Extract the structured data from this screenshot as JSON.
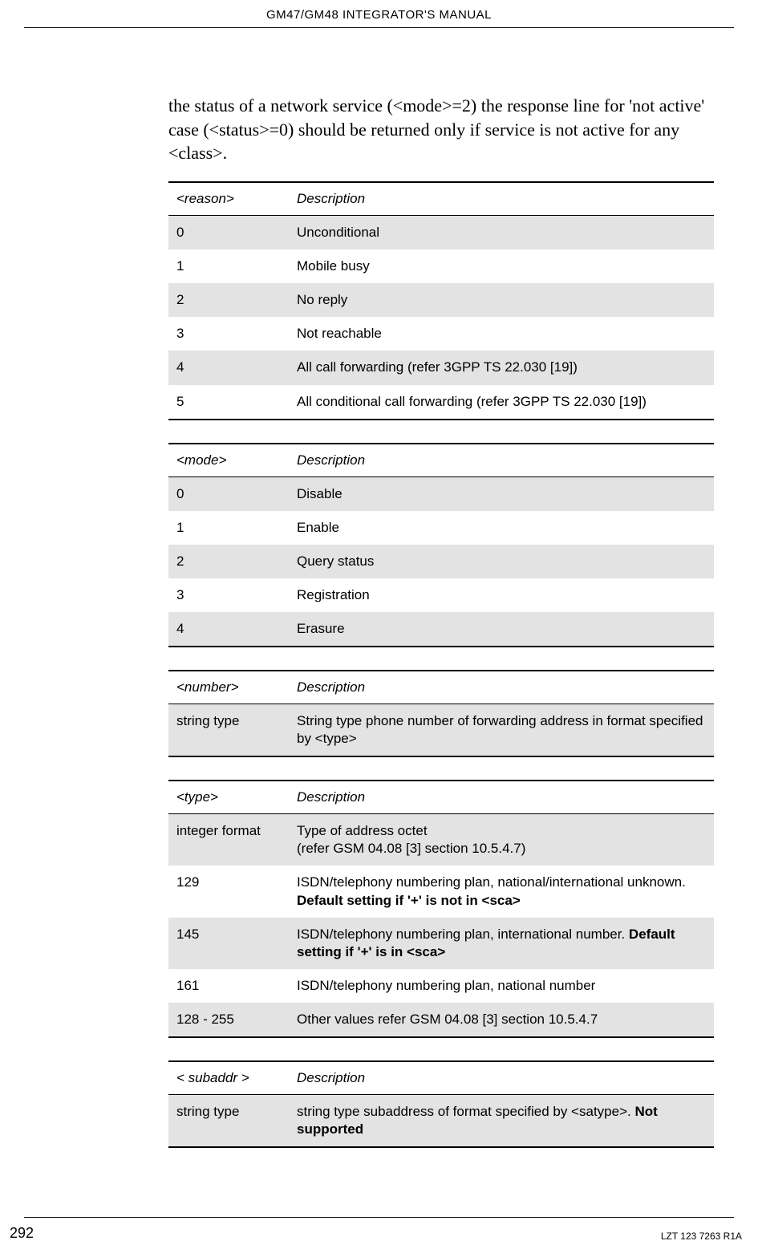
{
  "header": {
    "title": "GM47/GM48 INTEGRATOR'S MANUAL"
  },
  "intro": "the status of a network service (<mode>=2) the response line for 'not active' case (<status>=0) should be returned only if service is not active for any <class>.",
  "tables": {
    "reason": {
      "col1_header": "<reason>",
      "col2_header": "Description",
      "rows": [
        {
          "c1": "0",
          "c2": "Unconditional",
          "shade": true
        },
        {
          "c1": "1",
          "c2": "Mobile busy",
          "shade": false
        },
        {
          "c1": "2",
          "c2": "No reply",
          "shade": true
        },
        {
          "c1": "3",
          "c2": "Not reachable",
          "shade": false
        },
        {
          "c1": "4",
          "c2": "All call forwarding (refer 3GPP TS 22.030 [19])",
          "shade": true
        },
        {
          "c1": "5",
          "c2": "All conditional call forwarding (refer 3GPP TS 22.030 [19])",
          "shade": false
        }
      ]
    },
    "mode": {
      "col1_header": "<mode>",
      "col2_header": "Description",
      "rows": [
        {
          "c1": "0",
          "c2": "Disable",
          "shade": true
        },
        {
          "c1": "1",
          "c2": "Enable",
          "shade": false
        },
        {
          "c1": "2",
          "c2": "Query status",
          "shade": true
        },
        {
          "c1": "3",
          "c2": "Registration",
          "shade": false
        },
        {
          "c1": "4",
          "c2": "Erasure",
          "shade": true
        }
      ]
    },
    "number": {
      "col1_header": "<number>",
      "col2_header": "Description",
      "rows": [
        {
          "c1": "string type",
          "c2": "String type phone number of forwarding address in format specified by <type>",
          "shade": true
        }
      ]
    },
    "type": {
      "col1_header": "<type>",
      "col2_header": "Description",
      "rows": [
        {
          "c1": "integer format",
          "c2": "Type of address octet\n(refer GSM 04.08 [3] section 10.5.4.7)",
          "shade": true
        },
        {
          "c1": "129",
          "c2_plain": "ISDN/telephony numbering plan, national/international unknown. ",
          "c2_bold": "Default setting if '+' is not in <sca>",
          "shade": false
        },
        {
          "c1": "145",
          "c2_plain": "ISDN/telephony numbering plan, international number. ",
          "c2_bold": "Default setting if '+' is in <sca>",
          "shade": true
        },
        {
          "c1": "161",
          "c2": "ISDN/telephony numbering plan, national number",
          "shade": false
        },
        {
          "c1": "128 - 255",
          "c2": "Other values refer GSM 04.08 [3] section 10.5.4.7",
          "shade": true
        }
      ]
    },
    "subaddr": {
      "col1_header": "< subaddr >",
      "col2_header": "Description",
      "rows": [
        {
          "c1": "string type",
          "c2_plain": "string type subaddress of format specified by <satype>. ",
          "c2_bold": "Not supported",
          "shade": true
        }
      ]
    }
  },
  "footer": {
    "page_no": "292",
    "doc_id": "LZT 123 7263 R1A"
  }
}
